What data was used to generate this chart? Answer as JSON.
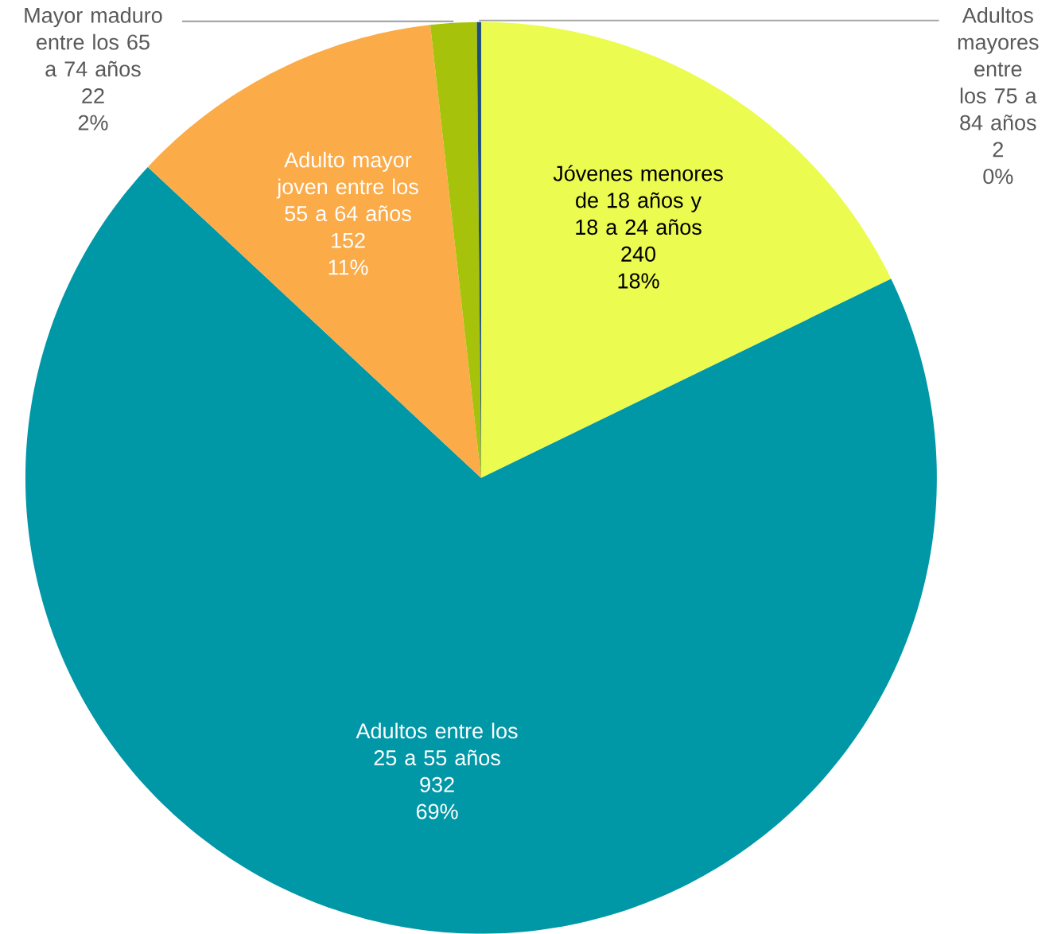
{
  "chart_data": {
    "type": "pie",
    "categories": [
      "Jóvenes menores de 18 años y 18 a 24 años",
      "Adultos entre los 25 a 55 años",
      "Adulto mayor joven entre los 55 a 64 años",
      "Mayor maduro entre los 65 a 74 años",
      "Adultos mayores entre los 75 a 84 años"
    ],
    "values": [
      240,
      932,
      152,
      22,
      2
    ],
    "colors": [
      "#ebfb4f",
      "#0097a7",
      "#fbab47",
      "#a6c20a",
      "#1f4e79"
    ],
    "data_labels": true,
    "value_labels": [
      "240",
      "932",
      "152",
      "22",
      "2"
    ],
    "annotations": [
      "18%",
      "69%",
      "11%",
      "2%",
      "0%"
    ]
  }
}
